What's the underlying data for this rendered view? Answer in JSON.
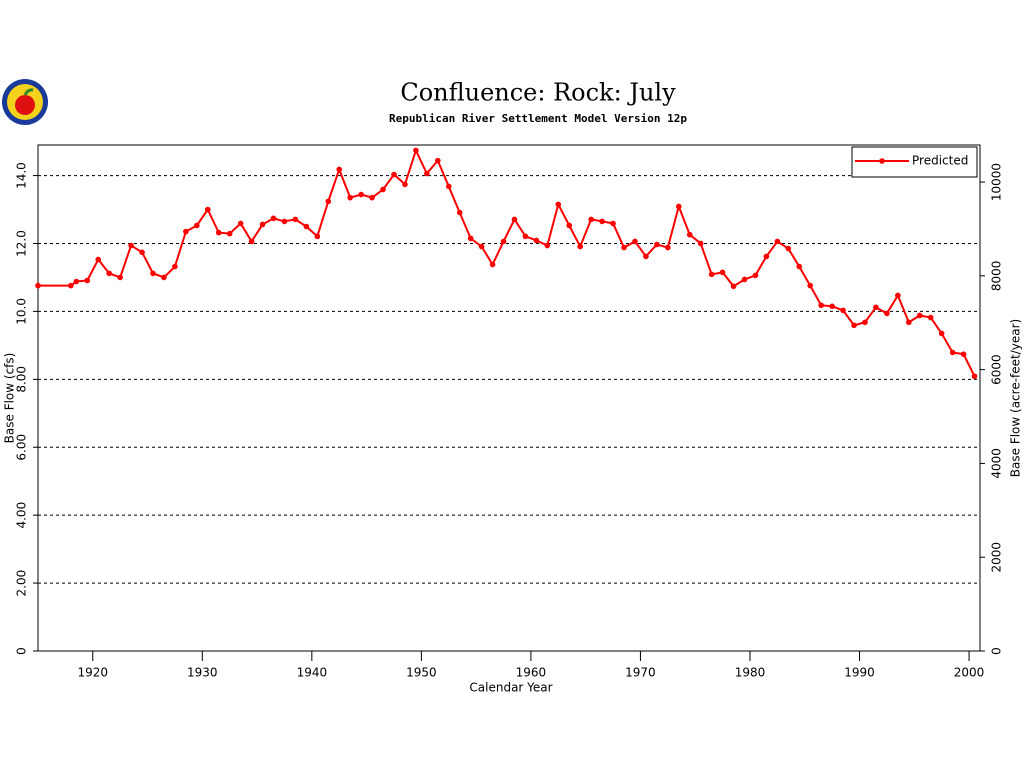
{
  "chart_data": {
    "type": "line",
    "title": "Confluence:  Rock:  July",
    "subtitle": "Republican River Settlement Model Version 12p",
    "x_label": "Calendar Year",
    "y_label": "Base Flow (cfs)",
    "y2_label": "Base Flow (acre-feet/year)",
    "xlim": [
      1915,
      2001
    ],
    "xticks": [
      1920,
      1930,
      1940,
      1950,
      1960,
      1970,
      1980,
      1990,
      2000
    ],
    "ylim": [
      0,
      14.9
    ],
    "yticks": [
      0,
      {
        "value": 2,
        "label": "2.00"
      },
      {
        "value": 4,
        "label": "4.00"
      },
      {
        "value": 6,
        "label": "6.00"
      },
      {
        "value": 8,
        "label": "8.00"
      },
      {
        "value": 10,
        "label": "10.0"
      },
      {
        "value": 12,
        "label": "12.0"
      },
      {
        "value": 14,
        "label": "14.0"
      }
    ],
    "y2lim": [
      0,
      10790
    ],
    "y2ticks": [
      0,
      2000,
      4000,
      6000,
      8000,
      10000
    ],
    "grid": true,
    "legend": "top-right",
    "x": [
      1915,
      1918,
      1918.5,
      1919.5,
      1920.5,
      1921.5,
      1922.5,
      1923.5,
      1924.5,
      1925.5,
      1926.5,
      1927.5,
      1928.5,
      1929.5,
      1930.5,
      1931.5,
      1932.5,
      1933.5,
      1934.5,
      1935.5,
      1936.5,
      1937.5,
      1938.5,
      1939.5,
      1940.5,
      1941.5,
      1942.5,
      1943.5,
      1944.5,
      1945.5,
      1946.5,
      1947.5,
      1948.5,
      1949.5,
      1950.5,
      1951.5,
      1952.5,
      1953.5,
      1954.5,
      1955.5,
      1956.5,
      1957.5,
      1958.5,
      1959.5,
      1960.5,
      1961.5,
      1962.5,
      1963.5,
      1964.5,
      1965.5,
      1966.5,
      1967.5,
      1968.5,
      1969.5,
      1970.5,
      1971.5,
      1972.5,
      1973.5,
      1974.5,
      1975.5,
      1976.5,
      1977.5,
      1978.5,
      1979.5,
      1980.5,
      1981.5,
      1982.5,
      1983.5,
      1984.5,
      1985.5,
      1986.5,
      1987.5,
      1988.5,
      1989.5,
      1990.5,
      1991.5,
      1992.5,
      1993.5,
      1994.5,
      1995.5,
      1996.5,
      1997.5,
      1998.5,
      1999.5,
      2000.5
    ],
    "series": [
      {
        "name": "Predicted",
        "color": "#ff0000",
        "values": [
          10.76,
          10.76,
          10.88,
          10.91,
          11.53,
          11.12,
          11.0,
          11.94,
          11.74,
          11.12,
          11.0,
          11.32,
          12.35,
          12.53,
          13.0,
          12.32,
          12.29,
          12.59,
          12.06,
          12.56,
          12.74,
          12.65,
          12.71,
          12.5,
          12.21,
          13.24,
          14.18,
          13.35,
          13.44,
          13.35,
          13.59,
          14.03,
          13.74,
          14.74,
          14.06,
          14.44,
          13.68,
          12.91,
          12.15,
          11.91,
          11.38,
          12.06,
          12.71,
          12.21,
          12.09,
          11.94,
          13.15,
          12.53,
          11.91,
          12.71,
          12.65,
          12.59,
          11.88,
          12.06,
          11.62,
          11.97,
          11.88,
          13.09,
          12.26,
          12.0,
          11.09,
          11.15,
          10.74,
          10.94,
          11.06,
          11.62,
          12.06,
          11.85,
          11.32,
          10.76,
          10.18,
          10.15,
          10.03,
          9.59,
          9.68,
          10.12,
          9.94,
          10.47,
          9.68,
          9.88,
          9.82,
          9.35,
          8.79,
          8.74,
          8.09
        ]
      }
    ]
  }
}
